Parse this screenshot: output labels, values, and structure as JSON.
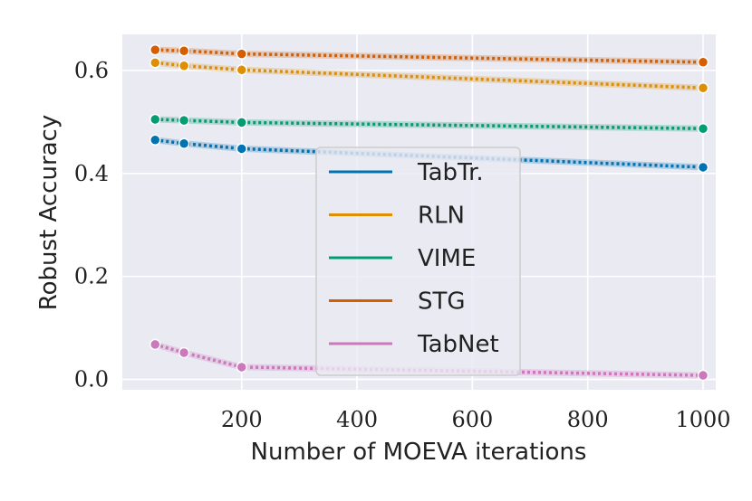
{
  "chart_data": {
    "type": "line",
    "title": "",
    "xlabel": "Number of MOEVA iterations",
    "ylabel": "Robust Accuracy",
    "xlim": [
      -7,
      1022
    ],
    "ylim": [
      -0.02,
      0.67
    ],
    "xticks": [
      200,
      400,
      600,
      800,
      1000
    ],
    "xtick_labels": [
      "200",
      "400",
      "600",
      "800",
      "1000"
    ],
    "yticks": [
      0.0,
      0.2,
      0.4,
      0.6
    ],
    "ytick_labels": [
      "0.0",
      "0.2",
      "0.4",
      "0.6"
    ],
    "grid": true,
    "legend_position": "center",
    "x": [
      50,
      100,
      200,
      1000
    ],
    "series": [
      {
        "name": "TabTr.",
        "color": "#0173b2",
        "values": [
          0.465,
          0.458,
          0.448,
          0.412
        ]
      },
      {
        "name": "RLN",
        "color": "#de8f05",
        "values": [
          0.615,
          0.609,
          0.601,
          0.566
        ]
      },
      {
        "name": "VIME",
        "color": "#029e73",
        "values": [
          0.505,
          0.503,
          0.499,
          0.487
        ]
      },
      {
        "name": "STG",
        "color": "#d55e00",
        "values": [
          0.64,
          0.638,
          0.632,
          0.616
        ]
      },
      {
        "name": "TabNet",
        "color": "#cc78bc",
        "values": [
          0.068,
          0.052,
          0.024,
          0.008
        ]
      }
    ]
  }
}
